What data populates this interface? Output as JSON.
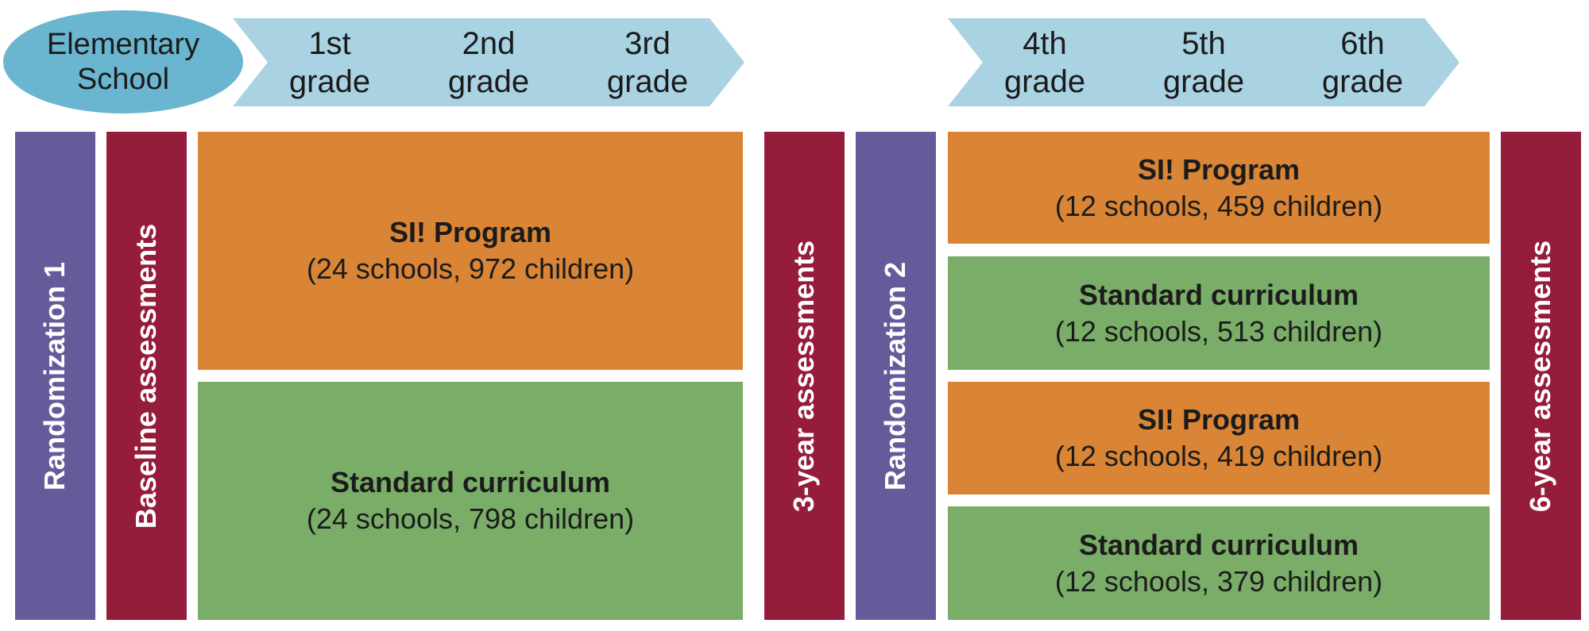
{
  "header": {
    "school": "Elementary School",
    "school_lines": [
      "Elementary",
      "School"
    ],
    "grades": [
      {
        "ordinal": "1st",
        "label": "grade"
      },
      {
        "ordinal": "2nd",
        "label": "grade"
      },
      {
        "ordinal": "3rd",
        "label": "grade"
      },
      {
        "ordinal": "4th",
        "label": "grade"
      },
      {
        "ordinal": "5th",
        "label": "grade"
      },
      {
        "ordinal": "6th",
        "label": "grade"
      }
    ]
  },
  "bars": {
    "randomization1": "Randomization 1",
    "baseline": "Baseline assessments",
    "three_year": "3-year assessments",
    "randomization2": "Randomization 2",
    "six_year": "6-year assessments"
  },
  "phase1": [
    {
      "title": "SI! Program",
      "detail": "(24 schools, 972 children)"
    },
    {
      "title": "Standard curriculum",
      "detail": "(24 schools, 798 children)"
    }
  ],
  "phase2": [
    {
      "title": "SI! Program",
      "detail": "(12 schools, 459 children)"
    },
    {
      "title": "Standard curriculum",
      "detail": "(12 schools, 513 children)"
    },
    {
      "title": "SI! Program",
      "detail": "(12 schools, 419 children)"
    },
    {
      "title": "Standard curriculum",
      "detail": "(12 schools, 379 children)"
    }
  ],
  "colors": {
    "school": "#6ab5d0",
    "grade": "#a9d3e3",
    "randomization": "#675a9b",
    "assessment": "#951c3a",
    "si_program": "#d98535",
    "standard": "#7aad68"
  }
}
